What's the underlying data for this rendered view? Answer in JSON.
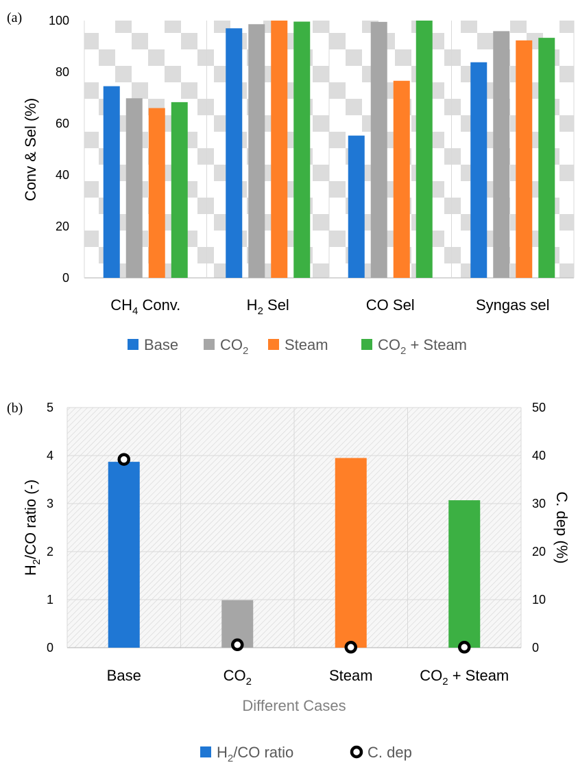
{
  "chart_data": [
    {
      "panel": "(a)",
      "type": "bar",
      "categories": [
        "CH4 Conv.",
        "H2 Sel",
        "CO Sel",
        "Syngas sel"
      ],
      "category_labels": [
        {
          "main": "CH",
          "sub": "4",
          "rest": " Conv."
        },
        {
          "main": "H",
          "sub": "2",
          "rest": " Sel"
        },
        {
          "main": "CO Sel",
          "sub": "",
          "rest": ""
        },
        {
          "main": "Syngas sel",
          "sub": "",
          "rest": ""
        }
      ],
      "series": [
        {
          "name": "Base",
          "label": {
            "main": "Base",
            "sub": "",
            "rest": ""
          },
          "color": "#1f77d4",
          "values": [
            74.5,
            97,
            55.3,
            83.8
          ]
        },
        {
          "name": "CO2",
          "label": {
            "main": "CO",
            "sub": "2",
            "rest": ""
          },
          "color": "#a6a6a6",
          "values": [
            69.8,
            98.6,
            99.5,
            95.9
          ]
        },
        {
          "name": "Steam",
          "label": {
            "main": "Steam",
            "sub": "",
            "rest": ""
          },
          "color": "#ff7f27",
          "values": [
            66,
            100,
            76.6,
            92.3
          ]
        },
        {
          "name": "CO2 + Steam",
          "label": {
            "main": "CO",
            "sub": "2",
            "rest": " + Steam"
          },
          "color": "#3cb043",
          "values": [
            68.3,
            99.6,
            100,
            93.3
          ]
        }
      ],
      "ylabel": "Conv & Sel (%)",
      "ylim": [
        0,
        100
      ],
      "yticks": [
        0,
        20,
        40,
        60,
        80,
        100
      ],
      "grid": true,
      "legend_position": "bottom"
    },
    {
      "panel": "(b)",
      "type": "bar",
      "categories": [
        "Base",
        "CO2",
        "Steam",
        "CO2 + Steam"
      ],
      "category_labels": [
        {
          "main": "Base",
          "sub": "",
          "rest": ""
        },
        {
          "main": "CO",
          "sub": "2",
          "rest": ""
        },
        {
          "main": "Steam",
          "sub": "",
          "rest": ""
        },
        {
          "main": "CO",
          "sub": "2",
          "rest": " + Steam"
        }
      ],
      "bar_series": {
        "name": "H2/CO ratio",
        "label": {
          "main": "H",
          "sub": "2",
          "rest": "/CO ratio"
        },
        "values": [
          3.87,
          0.99,
          3.95,
          3.07
        ],
        "colors": [
          "#1f77d4",
          "#a6a6a6",
          "#ff7f27",
          "#3cb043"
        ],
        "legend_color": "#1f77d4"
      },
      "marker_series": {
        "name": "C. dep",
        "label": {
          "main": "C. dep",
          "sub": "",
          "rest": ""
        },
        "values": [
          39.2,
          0.6,
          0.1,
          0.1
        ],
        "axis": "right"
      },
      "xlabel": "Different Cases",
      "ylabel_left": {
        "main": "H",
        "sub": "2",
        "rest": "/CO ratio (-)"
      },
      "ylabel_right": "C. dep (%)",
      "ylim_left": [
        0,
        5
      ],
      "yticks_left": [
        0,
        1,
        2,
        3,
        4,
        5
      ],
      "ylim_right": [
        0,
        50
      ],
      "yticks_right": [
        0,
        10,
        20,
        30,
        40,
        50
      ],
      "grid": true,
      "legend_position": "bottom"
    }
  ]
}
